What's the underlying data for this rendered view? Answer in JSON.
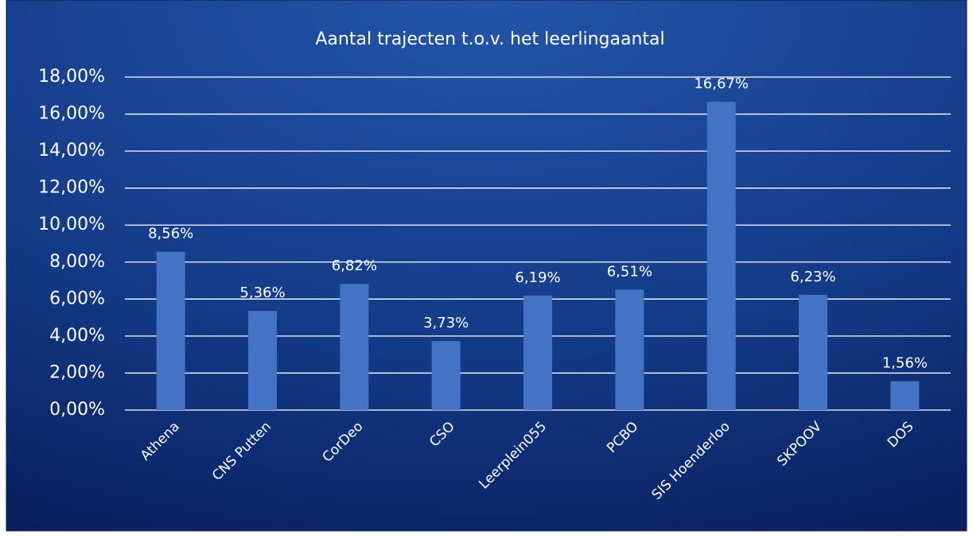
{
  "chart_data": {
    "type": "bar",
    "title": "Aantal trajecten t.o.v. het leerlingaantal",
    "categories": [
      "Athena",
      "CNS Putten",
      "CorDeo",
      "CSO",
      "Leerplein055",
      "PCBO",
      "SIS Hoenderloo",
      "SKPOOV",
      "DOS"
    ],
    "values": [
      8.56,
      5.36,
      6.82,
      3.73,
      6.19,
      6.51,
      16.67,
      6.23,
      1.56
    ],
    "value_labels": [
      "8,56%",
      "5,36%",
      "6,82%",
      "3,73%",
      "6,19%",
      "6,51%",
      "16,67%",
      "6,23%",
      "1,56%"
    ],
    "color": "#4472c4",
    "ylim": [
      0,
      18
    ],
    "yticks": [
      {
        "value": 0,
        "label": "0,00%"
      },
      {
        "value": 2,
        "label": "2,00%"
      },
      {
        "value": 4,
        "label": "4,00%"
      },
      {
        "value": 6,
        "label": "6,00%"
      },
      {
        "value": 8,
        "label": "8,00%"
      },
      {
        "value": 10,
        "label": "10,00%"
      },
      {
        "value": 12,
        "label": "12,00%"
      },
      {
        "value": 14,
        "label": "14,00%"
      },
      {
        "value": 16,
        "label": "16,00%"
      },
      {
        "value": 18,
        "label": "18,00%"
      }
    ],
    "grid": true
  }
}
